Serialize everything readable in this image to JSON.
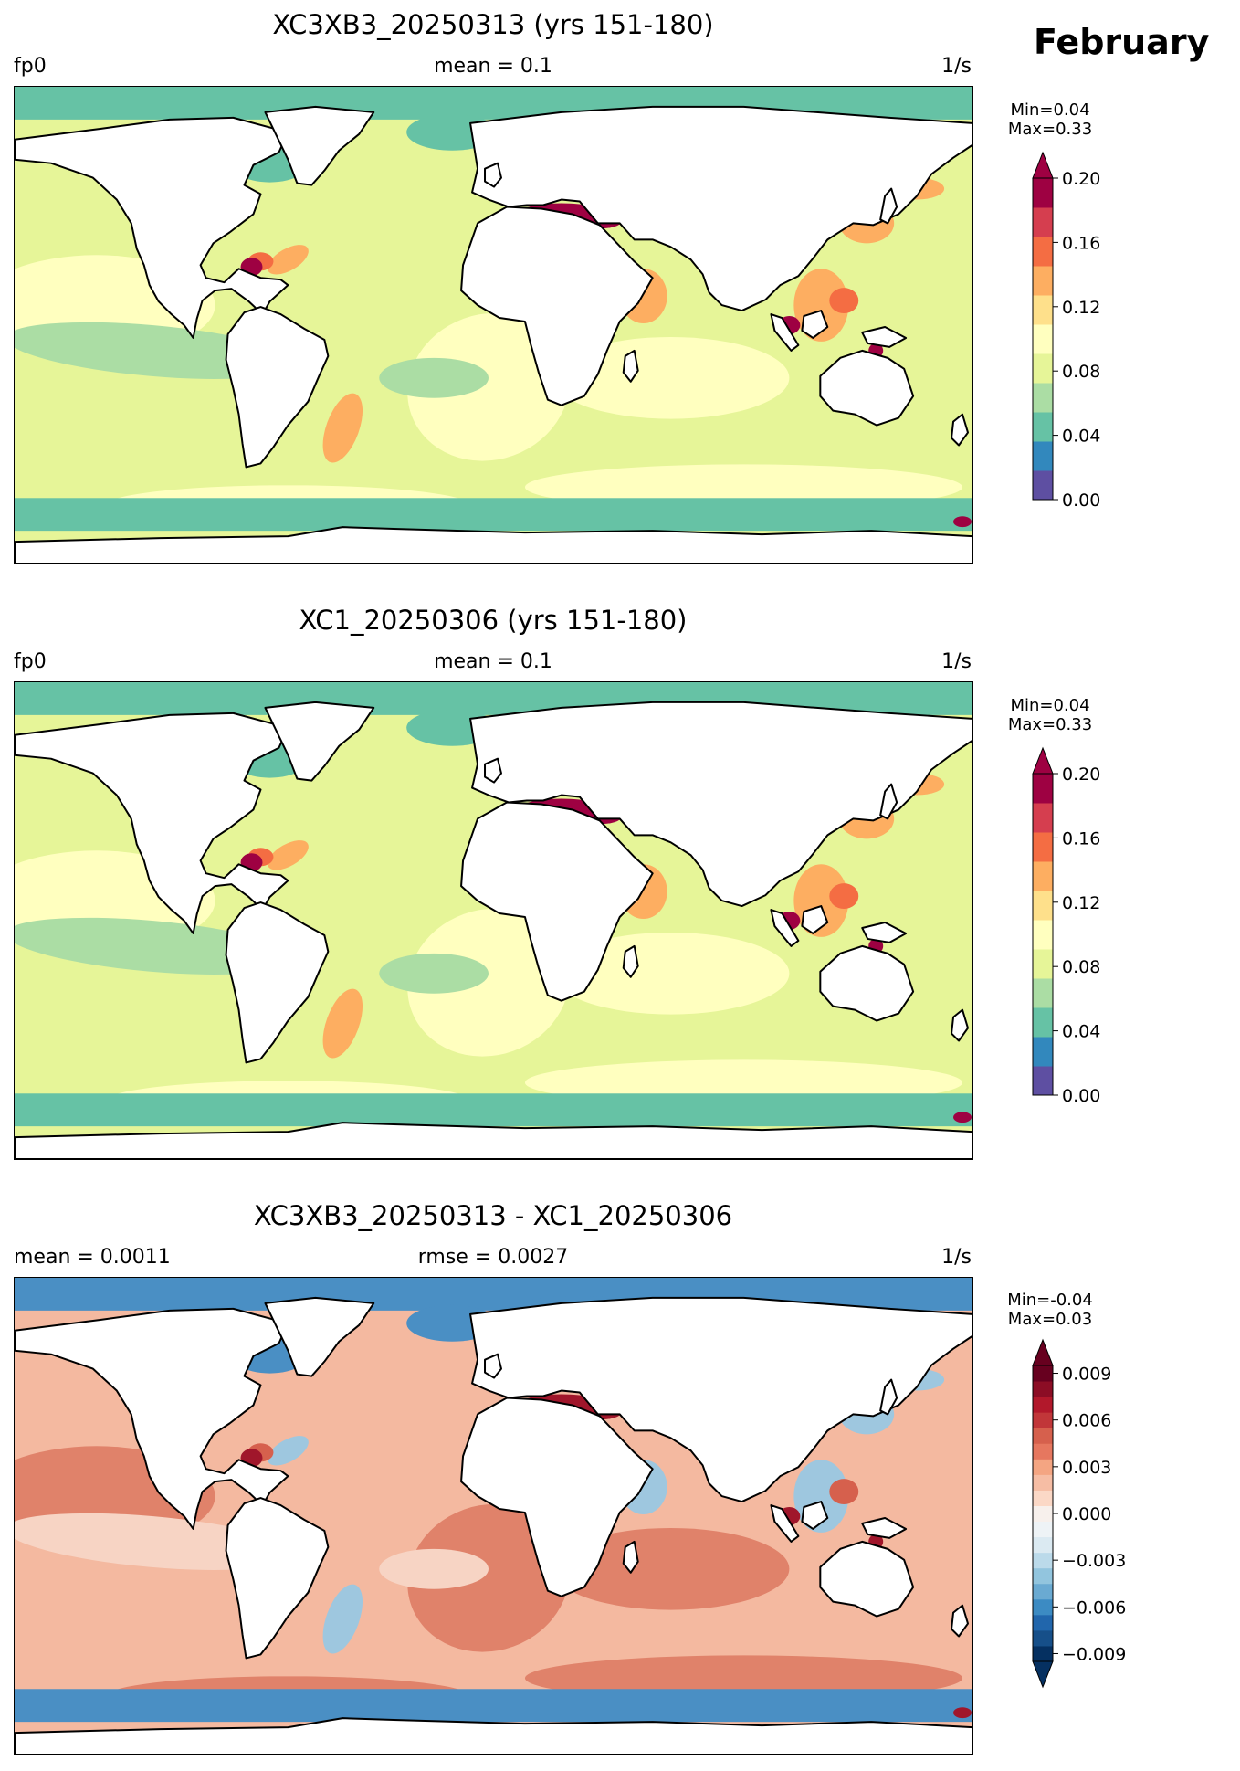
{
  "month_label": "February",
  "panels": [
    {
      "title": "XC3XB3_20250313 (yrs 151-180)",
      "left_label": "fp0",
      "center_label": "mean = 0.1",
      "units": "1/s",
      "min_label": "Min=0.04",
      "max_label": "Max=0.33",
      "colorbar": {
        "ticks": [
          "0.00",
          "0.04",
          "0.08",
          "0.12",
          "0.16",
          "0.20"
        ],
        "colors": [
          "#5e4fa2",
          "#3288bd",
          "#66c2a5",
          "#abdda4",
          "#e6f598",
          "#ffffbf",
          "#fee08b",
          "#fdae61",
          "#f46d43",
          "#d53e4f",
          "#9e0142"
        ],
        "extend": "max"
      },
      "field": {
        "polar": "#66c2a5",
        "ocean": "#e6f598",
        "gyre": "#ffffbf",
        "tropic": "#abdda4",
        "coast": "#fdae61",
        "hot": "#9e0142",
        "warm": "#f46d43"
      }
    },
    {
      "title": "XC1_20250306 (yrs 151-180)",
      "left_label": "fp0",
      "center_label": "mean = 0.1",
      "units": "1/s",
      "min_label": "Min=0.04",
      "max_label": "Max=0.33",
      "colorbar": {
        "ticks": [
          "0.00",
          "0.04",
          "0.08",
          "0.12",
          "0.16",
          "0.20"
        ],
        "colors": [
          "#5e4fa2",
          "#3288bd",
          "#66c2a5",
          "#abdda4",
          "#e6f598",
          "#ffffbf",
          "#fee08b",
          "#fdae61",
          "#f46d43",
          "#d53e4f",
          "#9e0142"
        ],
        "extend": "max"
      },
      "field": {
        "polar": "#66c2a5",
        "ocean": "#e6f598",
        "gyre": "#ffffbf",
        "tropic": "#abdda4",
        "coast": "#fdae61",
        "hot": "#9e0142",
        "warm": "#f46d43"
      }
    },
    {
      "title": "XC3XB3_20250313 - XC1_20250306",
      "left_label": "mean = 0.0011",
      "center_label": "rmse = 0.0027",
      "units": "1/s",
      "min_label": "Min=-0.04",
      "max_label": "Max=0.03",
      "colorbar": {
        "ticks": [
          "−0.009",
          "−0.006",
          "−0.003",
          "0.000",
          "0.003",
          "0.006",
          "0.009"
        ],
        "colors": [
          "#053061",
          "#164f89",
          "#2166ac",
          "#3c8bc3",
          "#6aaad2",
          "#92c5de",
          "#bbdaea",
          "#dbeaf2",
          "#eef3f6",
          "#f7f0ec",
          "#fbd8c6",
          "#f6bda4",
          "#f4a582",
          "#e6775f",
          "#d6604d",
          "#c13639",
          "#b2182b",
          "#8c0d25",
          "#67001f"
        ],
        "extend": "both"
      },
      "field": {
        "polar": "#4a8fc4",
        "ocean": "#f4b9a0",
        "gyre": "#e0826a",
        "tropic": "#f7d4c4",
        "coast": "#9ec7df",
        "hot": "#a0162b",
        "warm": "#d6604d"
      }
    }
  ]
}
